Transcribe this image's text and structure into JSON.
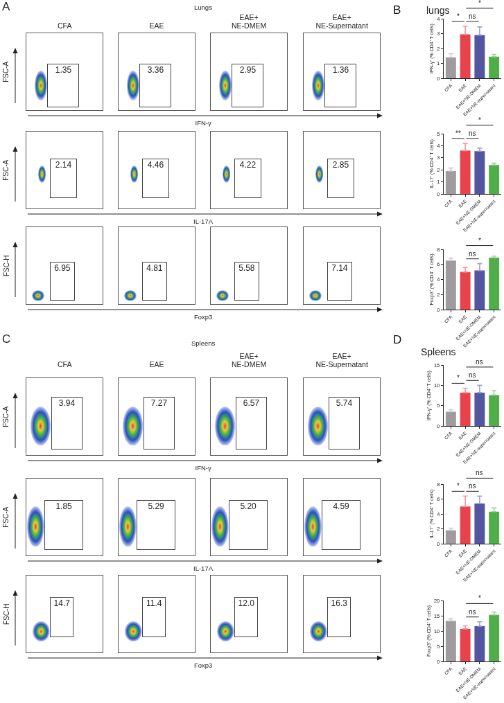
{
  "chart_data": [
    {
      "type": "other",
      "title": "Lungs",
      "categories": [
        "CFA",
        "EAE",
        "EAE+ NE-DMEM",
        "EAE+ NE-Supernatant"
      ],
      "values": [
        1.35,
        3.36,
        2.95,
        1.36
      ],
      "data_labels": true,
      "xlabel": "IFN-γ",
      "ylabel": "FSC-A",
      "annotations": [
        "A"
      ]
    },
    {
      "type": "other",
      "categories": [
        null,
        null,
        null,
        null
      ],
      "values": [
        2.14,
        4.46,
        4.22,
        2.85
      ],
      "data_labels": true,
      "xlabel": "IL-17A",
      "ylabel": "FSC-A"
    },
    {
      "type": "other",
      "categories": [
        null,
        null,
        null,
        null
      ],
      "values": [
        6.95,
        4.81,
        5.58,
        7.14
      ],
      "data_labels": true,
      "xlabel": "Foxp3",
      "ylabel": "FSC-H"
    },
    {
      "type": "bar",
      "title": "lungs",
      "categories": [
        "CFA",
        "EAE",
        "EAE+NE-DMEM",
        "EAE+NE-supernatant"
      ],
      "values": [
        1.4,
        2.95,
        2.9,
        1.45
      ],
      "errors": [
        [
          1.4,
          1.65
        ],
        [
          2.95,
          3.5
        ],
        [
          2.9,
          3.45
        ],
        [
          1.45,
          1.6
        ]
      ],
      "colors": [
        "#9f9b9f",
        "#e8434d",
        "#52559f",
        "#4fae48"
      ],
      "ylabel": "IFN-γ⁺ (% CD4⁺ T cells)",
      "ylim": [
        0,
        4
      ],
      "yticks": [
        0,
        1,
        2,
        3,
        4
      ],
      "annotations": [
        "B",
        "*",
        "ns",
        "*"
      ]
    },
    {
      "type": "bar",
      "categories": [
        "CFA",
        "EAE",
        "EAE+NE-DMEM",
        "EAE+NE-supernatant"
      ],
      "values": [
        1.9,
        3.6,
        3.55,
        2.4
      ],
      "errors": [
        [
          1.9,
          2.15
        ],
        [
          3.6,
          4.2
        ],
        [
          3.55,
          3.8
        ],
        [
          2.4,
          2.55
        ]
      ],
      "colors": [
        "#9f9b9f",
        "#e8434d",
        "#52559f",
        "#4fae48"
      ],
      "ylabel": "IL-17⁺ (% CD4⁺ T cells)",
      "ylim": [
        0,
        5
      ],
      "yticks": [
        0,
        1,
        2,
        3,
        4,
        5
      ],
      "annotations": [
        "**",
        "ns",
        "*"
      ]
    },
    {
      "type": "bar",
      "categories": [
        "CFA",
        "EAE",
        "EAE+NE-DMEM",
        "EAE+NE-supernatant"
      ],
      "values": [
        6.5,
        5.0,
        5.2,
        6.9
      ],
      "errors": [
        [
          6.5,
          6.8
        ],
        [
          5.0,
          5.6
        ],
        [
          5.2,
          6.1
        ],
        [
          6.9,
          7.1
        ]
      ],
      "colors": [
        "#9f9b9f",
        "#e8434d",
        "#52559f",
        "#4fae48"
      ],
      "ylabel": "Foxp3⁺ (% CD4⁺ T cells)",
      "ylim": [
        0,
        8
      ],
      "yticks": [
        0,
        2,
        4,
        6,
        8
      ],
      "annotations": [
        "ns",
        "*"
      ]
    },
    {
      "type": "other",
      "title": "Spleens",
      "categories": [
        "CFA",
        "EAE",
        "EAE+ NE-DMEM",
        "EAE+ NE-Supernatant"
      ],
      "values": [
        3.94,
        7.27,
        6.57,
        5.74
      ],
      "data_labels": true,
      "xlabel": "IFN-γ",
      "ylabel": "FSC-A",
      "annotations": [
        "C"
      ]
    },
    {
      "type": "other",
      "categories": [
        null,
        null,
        null,
        null
      ],
      "values": [
        1.85,
        5.29,
        5.2,
        4.59
      ],
      "value_labels": [
        "1.85",
        "5.29",
        "5.20",
        "4.59"
      ],
      "xlabel": "IL-17A",
      "ylabel": "FSC-A"
    },
    {
      "type": "other",
      "categories": [
        null,
        null,
        null,
        null
      ],
      "values": [
        14.7,
        11.4,
        12.0,
        16.3
      ],
      "value_labels": [
        "14.7",
        "11.4",
        "12.0",
        "16.3"
      ],
      "xlabel": "Foxp3",
      "ylabel": "FSC-H"
    },
    {
      "type": "bar",
      "title": "Spleens",
      "categories": [
        "CFA",
        "EAE",
        "EAE+NE-DMEM",
        "EAE+NE-supernatant"
      ],
      "values": [
        3.5,
        8.2,
        8.2,
        7.6
      ],
      "errors": [
        [
          3.5,
          4.0
        ],
        [
          8.2,
          9.3
        ],
        [
          8.2,
          10.0
        ],
        [
          7.6,
          8.7
        ]
      ],
      "colors": [
        "#9f9b9f",
        "#e8434d",
        "#52559f",
        "#4fae48"
      ],
      "ylabel": "IFN-γ⁺ (% CD4⁺ T cells)",
      "ylim": [
        0,
        15
      ],
      "yticks": [
        0,
        5,
        10,
        15
      ],
      "annotations": [
        "D",
        "*",
        "ns",
        "ns"
      ]
    },
    {
      "type": "bar",
      "categories": [
        "CFA",
        "EAE",
        "EAE+NE-DMEM",
        "EAE+NE-supernatant"
      ],
      "values": [
        1.8,
        5.0,
        5.4,
        4.3
      ],
      "errors": [
        [
          1.8,
          2.1
        ],
        [
          5.0,
          6.4
        ],
        [
          5.4,
          6.4
        ],
        [
          4.3,
          4.8
        ]
      ],
      "colors": [
        "#9f9b9f",
        "#e8434d",
        "#52559f",
        "#4fae48"
      ],
      "ylabel": "IL-17⁺ (% CD4⁺ T cells)",
      "ylim": [
        0,
        8
      ],
      "yticks": [
        0,
        2,
        4,
        6,
        8
      ],
      "annotations": [
        "*",
        "ns",
        "ns"
      ]
    },
    {
      "type": "bar",
      "categories": [
        "CFA",
        "EAE",
        "EAE+NE-DMEM",
        "EAE+NE-supernatant"
      ],
      "values": [
        13.3,
        10.7,
        11.6,
        15.3
      ],
      "errors": [
        [
          13.3,
          14.0
        ],
        [
          10.7,
          11.7
        ],
        [
          11.6,
          13.0
        ],
        [
          15.3,
          16.2
        ]
      ],
      "colors": [
        "#9f9b9f",
        "#e8434d",
        "#52559f",
        "#4fae48"
      ],
      "ylabel": "Foxp3⁺ (% CD4⁺ T cells)",
      "ylim": [
        0,
        20
      ],
      "yticks": [
        0,
        5,
        10,
        15,
        20
      ],
      "annotations": [
        "ns",
        "*"
      ]
    }
  ]
}
